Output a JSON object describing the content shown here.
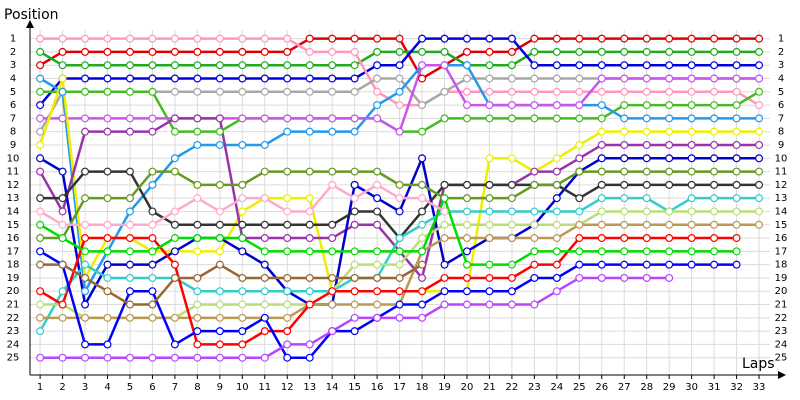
{
  "chart_data": {
    "type": "line",
    "y_label": "Position",
    "x_label": "Laps",
    "x": [
      1,
      2,
      3,
      4,
      5,
      6,
      7,
      8,
      9,
      10,
      11,
      12,
      13,
      14,
      15,
      16,
      17,
      18,
      19,
      20,
      21,
      22,
      23,
      24,
      25,
      26,
      27,
      28,
      29,
      30,
      31,
      32,
      33
    ],
    "xlim": [
      0.55,
      34.2
    ],
    "xticks": [
      1,
      2,
      3,
      4,
      5,
      6,
      7,
      8,
      9,
      10,
      11,
      12,
      13,
      14,
      15,
      16,
      17,
      18,
      19,
      20,
      21,
      22,
      23,
      24,
      25,
      26,
      27,
      28,
      29,
      30,
      31,
      32,
      33
    ],
    "ylim": [
      26.3,
      -0.4
    ],
    "yticks": [
      1,
      2,
      3,
      4,
      5,
      6,
      7,
      8,
      9,
      10,
      11,
      12,
      13,
      14,
      15,
      16,
      17,
      18,
      19,
      20,
      21,
      22,
      23,
      24,
      25
    ],
    "grid": true,
    "series": [
      {
        "color": "#e00000",
        "values": [
          3,
          2,
          2,
          2,
          2,
          2,
          2,
          2,
          2,
          2,
          2,
          2,
          1,
          1,
          1,
          1,
          1,
          4,
          3,
          2,
          2,
          2,
          1,
          1,
          1,
          1,
          1,
          1,
          1,
          1,
          1,
          1,
          1
        ]
      },
      {
        "color": "#22aa22",
        "values": [
          2,
          3,
          3,
          3,
          3,
          3,
          3,
          3,
          3,
          3,
          3,
          3,
          3,
          3,
          3,
          2,
          2,
          2,
          2,
          3,
          3,
          3,
          2,
          2,
          2,
          2,
          2,
          2,
          2,
          2,
          2,
          2,
          2
        ]
      },
      {
        "color": "#0000dd",
        "values": [
          6,
          4,
          4,
          4,
          4,
          4,
          4,
          4,
          4,
          4,
          4,
          4,
          4,
          4,
          4,
          3,
          3,
          1,
          1,
          1,
          1,
          1,
          3,
          3,
          3,
          3,
          3,
          3,
          3,
          3,
          3,
          3,
          3
        ]
      },
      {
        "color": "#ff99bb",
        "values": [
          1,
          1,
          1,
          1,
          1,
          1,
          1,
          1,
          1,
          1,
          1,
          1,
          2,
          2,
          2,
          5,
          6,
          6,
          5,
          5,
          5,
          5,
          5,
          5,
          5,
          5,
          5,
          5,
          5,
          5,
          5,
          5,
          6
        ]
      },
      {
        "color": "#a8a8a8",
        "values": [
          8,
          5,
          5,
          5,
          5,
          5,
          5,
          5,
          5,
          5,
          5,
          5,
          5,
          5,
          5,
          4,
          4,
          6,
          5,
          4,
          4,
          4,
          4,
          4,
          4,
          4,
          4,
          4,
          4,
          4,
          4,
          4,
          4
        ]
      },
      {
        "color": "#44bb22",
        "values": [
          5,
          5,
          5,
          5,
          5,
          5,
          8,
          8,
          8,
          7,
          7,
          7,
          7,
          7,
          7,
          7,
          8,
          8,
          7,
          7,
          7,
          7,
          7,
          7,
          7,
          7,
          6,
          6,
          6,
          6,
          6,
          6,
          5
        ]
      },
      {
        "color": "#2299ee",
        "values": [
          4,
          5,
          20,
          17,
          14,
          12,
          10,
          9,
          9,
          9,
          9,
          8,
          8,
          8,
          8,
          6,
          5,
          3,
          3,
          3,
          6,
          6,
          6,
          6,
          6,
          6,
          7,
          7,
          7,
          7,
          7,
          7,
          7
        ]
      },
      {
        "color": "#cc55ee",
        "values": [
          7,
          7,
          7,
          7,
          7,
          7,
          7,
          7,
          7,
          7,
          7,
          7,
          7,
          7,
          7,
          7,
          8,
          3,
          3,
          6,
          6,
          6,
          6,
          6,
          6,
          4,
          4,
          4,
          4,
          4,
          4,
          4,
          4
        ]
      },
      {
        "color": "#eeee00",
        "values": [
          9,
          4,
          19,
          16,
          16,
          17,
          17,
          17,
          17,
          14,
          13,
          13,
          13,
          20,
          20,
          20,
          20,
          20,
          20,
          20,
          10,
          10,
          11,
          10,
          9,
          8,
          8,
          8,
          8,
          8,
          8,
          8,
          8
        ]
      },
      {
        "color": "#9933aa",
        "values": [
          11,
          14,
          8,
          8,
          8,
          8,
          7,
          7,
          7,
          16,
          16,
          16,
          16,
          16,
          15,
          15,
          17,
          19,
          12,
          12,
          12,
          12,
          11,
          11,
          10,
          9,
          9,
          9,
          9,
          9,
          9,
          9,
          9
        ]
      },
      {
        "color": "#0000cc",
        "values": [
          10,
          11,
          21,
          18,
          18,
          18,
          17,
          16,
          16,
          17,
          18,
          20,
          21,
          21,
          12,
          13,
          14,
          10,
          18,
          17,
          16,
          16,
          15,
          13,
          11,
          10,
          10,
          10,
          10,
          10,
          10,
          10,
          10
        ]
      },
      {
        "color": "#333333",
        "values": [
          13,
          13,
          11,
          11,
          11,
          14,
          15,
          15,
          15,
          15,
          15,
          15,
          15,
          15,
          14,
          14,
          16,
          14,
          12,
          12,
          12,
          12,
          12,
          12,
          13,
          12,
          12,
          12,
          12,
          12,
          12,
          12,
          12
        ]
      },
      {
        "color": "#669922",
        "values": [
          16,
          16,
          13,
          13,
          13,
          11,
          11,
          12,
          12,
          12,
          11,
          11,
          11,
          11,
          11,
          11,
          12,
          12,
          13,
          13,
          13,
          13,
          12,
          12,
          11,
          11,
          11,
          11,
          11,
          11,
          11,
          11,
          11
        ]
      },
      {
        "color": "#33cccc",
        "values": [
          23,
          20,
          18,
          19,
          19,
          19,
          19,
          20,
          20,
          20,
          20,
          20,
          20,
          20,
          19,
          19,
          16,
          15,
          14,
          14,
          14,
          14,
          14,
          14,
          14,
          13,
          13,
          13,
          14,
          13,
          13,
          13,
          13
        ]
      },
      {
        "color": "#bbdd77",
        "values": [
          21,
          21,
          22,
          22,
          22,
          22,
          22,
          21,
          21,
          21,
          21,
          21,
          21,
          20,
          18,
          18,
          18,
          16,
          15,
          15,
          15,
          15,
          15,
          15,
          15,
          14,
          14,
          14,
          14,
          14,
          14,
          14,
          14
        ]
      },
      {
        "color": "#bb9955",
        "values": [
          22,
          22,
          22,
          22,
          22,
          22,
          22,
          22,
          22,
          22,
          22,
          22,
          21,
          21,
          21,
          21,
          21,
          17,
          16,
          16,
          16,
          16,
          16,
          16,
          15,
          15,
          15,
          15,
          15,
          15,
          15,
          15,
          15
        ]
      },
      {
        "color": "#ff0000",
        "values": [
          20,
          21,
          16,
          16,
          16,
          16,
          18,
          24,
          24,
          24,
          23,
          23,
          21,
          20,
          20,
          20,
          20,
          20,
          19,
          19,
          19,
          19,
          18,
          18,
          16,
          16,
          16,
          16,
          16,
          16,
          16,
          16,
          null
        ]
      },
      {
        "color": "#00dd00",
        "values": [
          15,
          16,
          17,
          17,
          17,
          17,
          16,
          16,
          16,
          16,
          17,
          17,
          17,
          17,
          17,
          17,
          17,
          17,
          13,
          18,
          18,
          18,
          17,
          17,
          17,
          17,
          17,
          17,
          17,
          17,
          17,
          17,
          null
        ]
      },
      {
        "color": "#0000ff",
        "values": [
          17,
          18,
          24,
          24,
          20,
          20,
          24,
          23,
          23,
          23,
          22,
          25,
          25,
          23,
          23,
          22,
          21,
          21,
          20,
          20,
          20,
          20,
          19,
          19,
          18,
          18,
          18,
          18,
          18,
          18,
          18,
          18,
          null
        ]
      },
      {
        "color": "#bb44ff",
        "values": [
          25,
          25,
          25,
          25,
          25,
          25,
          25,
          25,
          25,
          25,
          25,
          24,
          24,
          23,
          22,
          22,
          22,
          22,
          21,
          21,
          21,
          21,
          21,
          20,
          19,
          19,
          19,
          19,
          19,
          null,
          null,
          null,
          null
        ]
      },
      {
        "color": "#996633",
        "values": [
          18,
          18,
          19,
          20,
          21,
          21,
          19,
          19,
          18,
          19,
          19,
          19,
          19,
          19,
          19,
          19,
          19,
          18,
          null,
          null,
          null,
          null,
          null,
          null,
          null,
          null,
          null,
          null,
          null,
          null,
          null,
          null,
          null
        ]
      },
      {
        "color": "#ffaacc",
        "values": [
          14,
          15,
          15,
          15,
          15,
          15,
          14,
          13,
          14,
          13,
          13,
          14,
          14,
          12,
          13,
          12,
          13,
          13,
          14,
          null,
          null,
          null,
          null,
          null,
          null,
          null,
          null,
          null,
          null,
          null,
          null,
          null,
          null
        ]
      }
    ]
  }
}
